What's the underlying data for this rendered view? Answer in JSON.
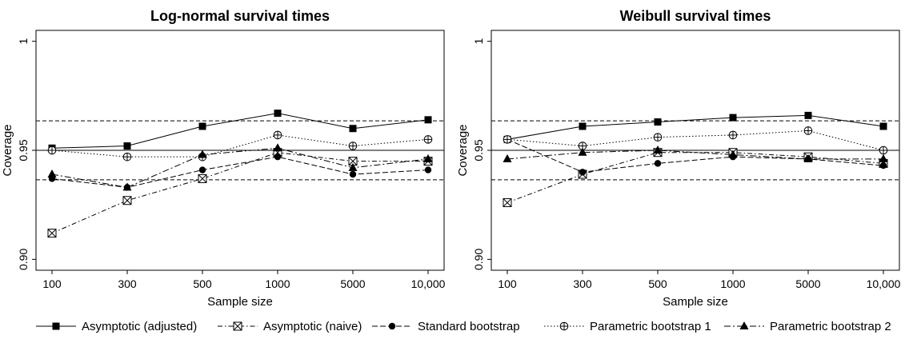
{
  "chart_data": [
    {
      "type": "line",
      "title": "Log-normal survival times",
      "xlabel": "Sample size",
      "ylabel": "Coverage",
      "categories": [
        "100",
        "300",
        "500",
        "1000",
        "5000",
        "10,000"
      ],
      "ylim": [
        0.895,
        1.005
      ],
      "yticks": [
        0.9,
        0.95,
        1.0
      ],
      "ytick_labels": [
        "0.90",
        "0.95",
        "1"
      ],
      "reference_lines": [
        {
          "value": 0.95,
          "style": "solid"
        },
        {
          "value": 0.9635,
          "style": "dashed"
        },
        {
          "value": 0.9365,
          "style": "dashed"
        }
      ],
      "series": [
        {
          "name": "Asymptotic (adjusted)",
          "values": [
            0.951,
            0.952,
            0.961,
            0.967,
            0.96,
            0.964
          ]
        },
        {
          "name": "Asymptotic (naive)",
          "values": [
            0.912,
            0.927,
            0.937,
            0.949,
            0.945,
            0.945
          ]
        },
        {
          "name": "Standard bootstrap",
          "values": [
            0.937,
            0.933,
            0.941,
            0.947,
            0.939,
            0.941
          ]
        },
        {
          "name": "Parametric bootstrap 1",
          "values": [
            0.95,
            0.947,
            0.947,
            0.957,
            0.952,
            0.955
          ]
        },
        {
          "name": "Parametric bootstrap 2",
          "values": [
            0.939,
            0.933,
            0.948,
            0.951,
            0.942,
            0.946
          ]
        }
      ]
    },
    {
      "type": "line",
      "title": "Weibull survival times",
      "xlabel": "Sample size",
      "ylabel": "Coverage",
      "categories": [
        "100",
        "300",
        "500",
        "1000",
        "5000",
        "10,000"
      ],
      "ylim": [
        0.895,
        1.005
      ],
      "yticks": [
        0.9,
        0.95,
        1.0
      ],
      "ytick_labels": [
        "0.90",
        "0.95",
        "1"
      ],
      "reference_lines": [
        {
          "value": 0.95,
          "style": "solid"
        },
        {
          "value": 0.9635,
          "style": "dashed"
        },
        {
          "value": 0.9365,
          "style": "dashed"
        }
      ],
      "series": [
        {
          "name": "Asymptotic (adjusted)",
          "values": [
            0.955,
            0.961,
            0.963,
            0.965,
            0.966,
            0.961
          ]
        },
        {
          "name": "Asymptotic (naive)",
          "values": [
            0.926,
            0.939,
            0.949,
            0.949,
            0.947,
            0.944
          ]
        },
        {
          "name": "Standard bootstrap",
          "values": [
            0.955,
            0.94,
            0.944,
            0.947,
            0.946,
            0.943
          ]
        },
        {
          "name": "Parametric bootstrap 1",
          "values": [
            0.955,
            0.952,
            0.956,
            0.957,
            0.959,
            0.95
          ]
        },
        {
          "name": "Parametric bootstrap 2",
          "values": [
            0.946,
            0.949,
            0.95,
            0.948,
            0.946,
            0.946
          ]
        }
      ]
    }
  ],
  "legend": {
    "placement": "bottom",
    "entries": [
      {
        "label": "Asymptotic (adjusted)",
        "line": "solid",
        "marker": "filled-square"
      },
      {
        "label": "Asymptotic (naive)",
        "line": "dash-dot",
        "marker": "crossed-square"
      },
      {
        "label": "Standard bootstrap",
        "line": "long-dash",
        "marker": "filled-circle"
      },
      {
        "label": "Parametric bootstrap 1",
        "line": "dotted",
        "marker": "crossed-circle"
      },
      {
        "label": "Parametric bootstrap 2",
        "line": "dash-dot",
        "marker": "filled-triangle"
      }
    ]
  }
}
